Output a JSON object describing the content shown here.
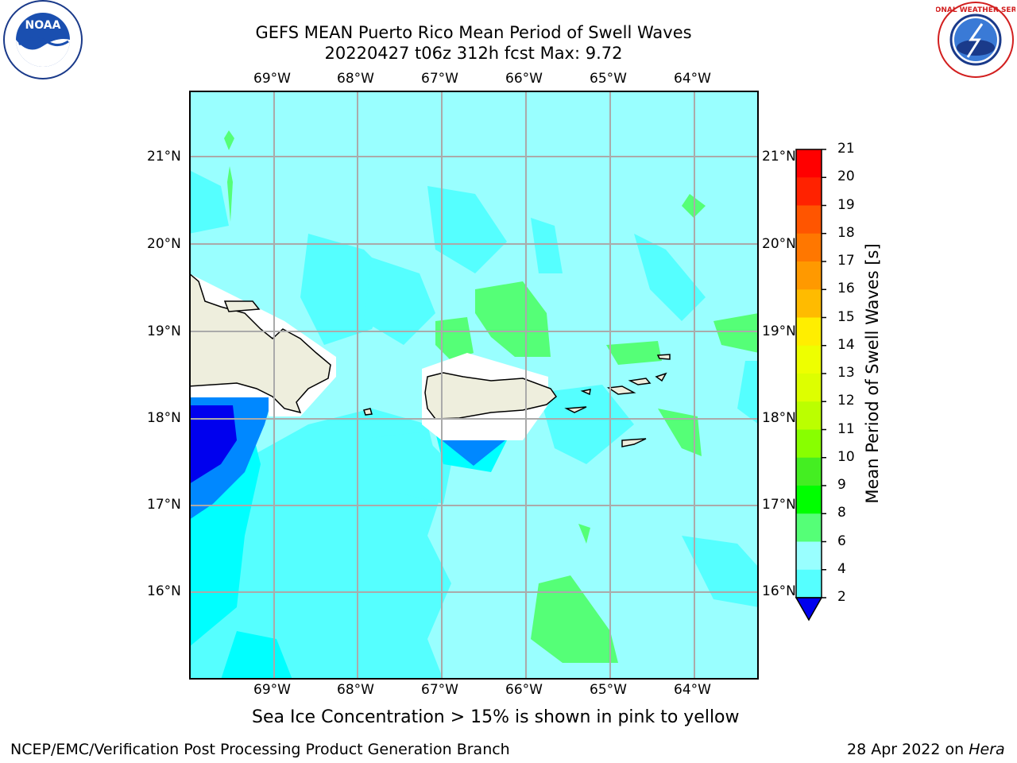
{
  "title": {
    "line1": "GEFS MEAN Puerto Rico Mean Period of Swell Waves",
    "line2": "20220427 t06z 312h fcst   Max: 9.72"
  },
  "map": {
    "lon_labels": [
      "69°W",
      "68°W",
      "67°W",
      "66°W",
      "65°W",
      "64°W"
    ],
    "lat_labels": [
      "21°N",
      "20°N",
      "19°N",
      "18°N",
      "17°N",
      "16°N"
    ]
  },
  "colorbar": {
    "label": "Mean Period of Swell Waves [s]",
    "ticks": [
      "21",
      "20",
      "19",
      "18",
      "17",
      "16",
      "15",
      "14",
      "13",
      "12",
      "11",
      "10",
      "9",
      "8",
      "6",
      "4",
      "2"
    ],
    "colors": [
      "#ff0000",
      "#ff2200",
      "#ff5500",
      "#ff7700",
      "#ff9900",
      "#ffbb00",
      "#ffee00",
      "#eeff00",
      "#ddff00",
      "#bbff00",
      "#88ff00",
      "#44ee22",
      "#00ff00",
      "#55ff77",
      "#99ffff",
      "#55ffff",
      "#00ffff",
      "#0088ff",
      "#0000ee"
    ]
  },
  "notes": {
    "sea_ice": "Sea Ice Concentration > 15% is shown in pink to yellow"
  },
  "footer": {
    "left": "NCEP/EMC/Verification Post Processing Product Generation Branch",
    "right_date": "28 Apr 2022 on ",
    "right_machine": "Hera"
  },
  "logos": {
    "noaa_text": "NOAA",
    "nws_text": "NATIONAL WEATHER SERVICE"
  }
}
